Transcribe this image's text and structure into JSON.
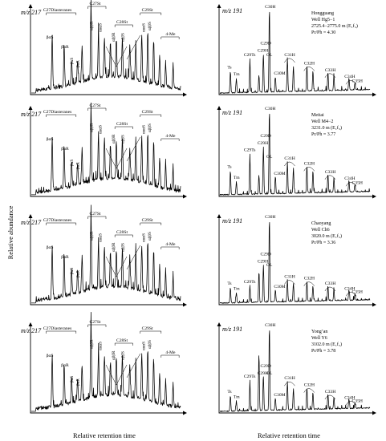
{
  "figure": {
    "ylabel": "Relative abundance",
    "xlabel": "Relative retention time"
  },
  "chart_data": [
    {
      "type": "line",
      "ion": "m/z 217",
      "compound_class": "steranes",
      "labels": [
        "C27Diasteranes",
        "C27St",
        "C28St",
        "C29St",
        "4-Me",
        "βαS",
        "βαR",
        "αββR",
        "αααS",
        "αββS",
        "αααR"
      ],
      "peak_positions": [
        0.1,
        0.19,
        0.34,
        0.55,
        0.78,
        0.93
      ],
      "peak_heights": [
        0.62,
        0.54,
        0.92,
        0.47,
        0.6,
        0.33
      ]
    },
    {
      "type": "line",
      "ion": "m/z 191",
      "compound_class": "terpanes",
      "labels": [
        "Ts",
        "Tm",
        "C29Ts",
        "C29H",
        "C30H",
        "C31H",
        "C32H",
        "C33H",
        "C34H",
        "C35H",
        "OL",
        "C30M",
        "C29D"
      ],
      "peak_positions": [
        0.05,
        0.12,
        0.22,
        0.3,
        0.38,
        0.5,
        0.62,
        0.75,
        0.86,
        0.94
      ],
      "peak_heights": [
        0.28,
        0.22,
        0.46,
        0.55,
        1.0,
        0.45,
        0.35,
        0.25,
        0.18,
        0.1
      ]
    }
  ],
  "samples": [
    {
      "field": "Hongguang",
      "well": "Well Hg5−1",
      "depth": "2725.4−2775.0 m (E₁f₃)",
      "pr_ph": "Pr/Ph = 4.30"
    },
    {
      "field": "Meitai",
      "well": "Well M4−2",
      "depth": "3231.0 m (E₁f₃)",
      "pr_ph": "Pr/Ph = 3.77"
    },
    {
      "field": "Chaoyang",
      "well": "Well Ch6",
      "depth": "3020.0 m (E₁f₃)",
      "pr_ph": "Pr/Ph = 3.36"
    },
    {
      "field": "Yong’an",
      "well": "Well Y6",
      "depth": "3102.0 m (E₁f₃)",
      "pr_ph": "Pr/Ph = 3.78"
    }
  ]
}
